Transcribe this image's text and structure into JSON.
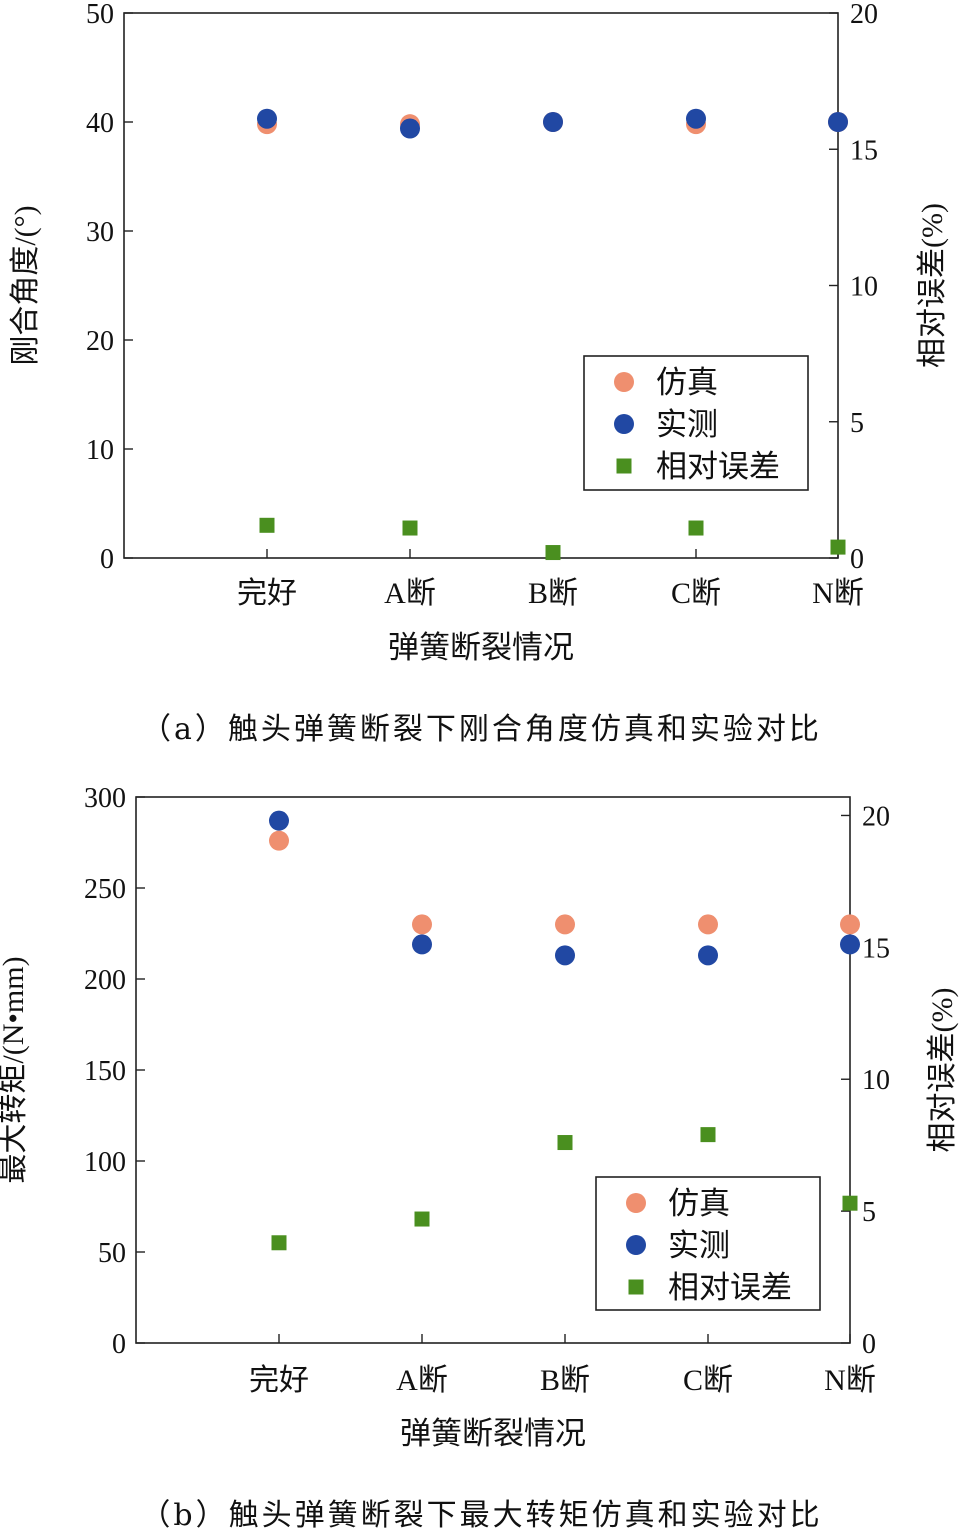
{
  "colors": {
    "sim": "#ef8f6f",
    "meas": "#2148a3",
    "err": "#4a8f1f",
    "axis": "#222222"
  },
  "chart_data": [
    {
      "type": "scatter",
      "categories": [
        "完好",
        "A断",
        "B断",
        "C断",
        "N断"
      ],
      "xlabel": "弹簧断裂情况",
      "ylabel": "刚合角度/(°)",
      "ylabel_right": "相对误差(%)",
      "ylim": [
        0,
        50
      ],
      "ylim_right": [
        0,
        20
      ],
      "yticks": [
        0,
        10,
        20,
        30,
        40,
        50
      ],
      "yticks_right": [
        0,
        5,
        10,
        15,
        20
      ],
      "series": [
        {
          "name": "仿真",
          "marker": "circle",
          "color": "#ef8f6f",
          "axis": "left",
          "values": [
            39.8,
            39.8,
            40.0,
            39.8,
            40.0
          ]
        },
        {
          "name": "实测",
          "marker": "circle",
          "color": "#2148a3",
          "axis": "left",
          "values": [
            40.3,
            39.4,
            40.0,
            40.3,
            40.0
          ]
        },
        {
          "name": "相对误差",
          "marker": "square",
          "color": "#4a8f1f",
          "axis": "right",
          "values": [
            1.2,
            1.1,
            0.2,
            1.1,
            0.4
          ]
        }
      ],
      "legend": "center-right",
      "caption": "（a）触头弹簧断裂下刚合角度仿真和实验对比"
    },
    {
      "type": "scatter",
      "categories": [
        "完好",
        "A断",
        "B断",
        "C断",
        "N断"
      ],
      "xlabel": "弹簧断裂情况",
      "ylabel": "最大转矩/(N•mm)",
      "ylabel_right": "相对误差(%)",
      "ylim": [
        0,
        300
      ],
      "ylim_right": [
        0,
        20.7
      ],
      "yticks": [
        0,
        50,
        100,
        150,
        200,
        250,
        300
      ],
      "yticks_right": [
        0,
        5,
        10,
        15,
        20
      ],
      "series": [
        {
          "name": "仿真",
          "marker": "circle",
          "color": "#ef8f6f",
          "axis": "left",
          "values": [
            276,
            230,
            230,
            230,
            230
          ]
        },
        {
          "name": "实测",
          "marker": "circle",
          "color": "#2148a3",
          "axis": "left",
          "values": [
            287,
            219,
            213,
            213,
            219
          ]
        },
        {
          "name": "相对误差",
          "marker": "square",
          "color": "#4a8f1f",
          "axis": "right",
          "values": [
            3.8,
            4.7,
            7.6,
            7.9,
            5.3
          ]
        }
      ],
      "legend": "bottom-right",
      "caption": "（b）触头弹簧断裂下最大转矩仿真和实验对比"
    }
  ]
}
